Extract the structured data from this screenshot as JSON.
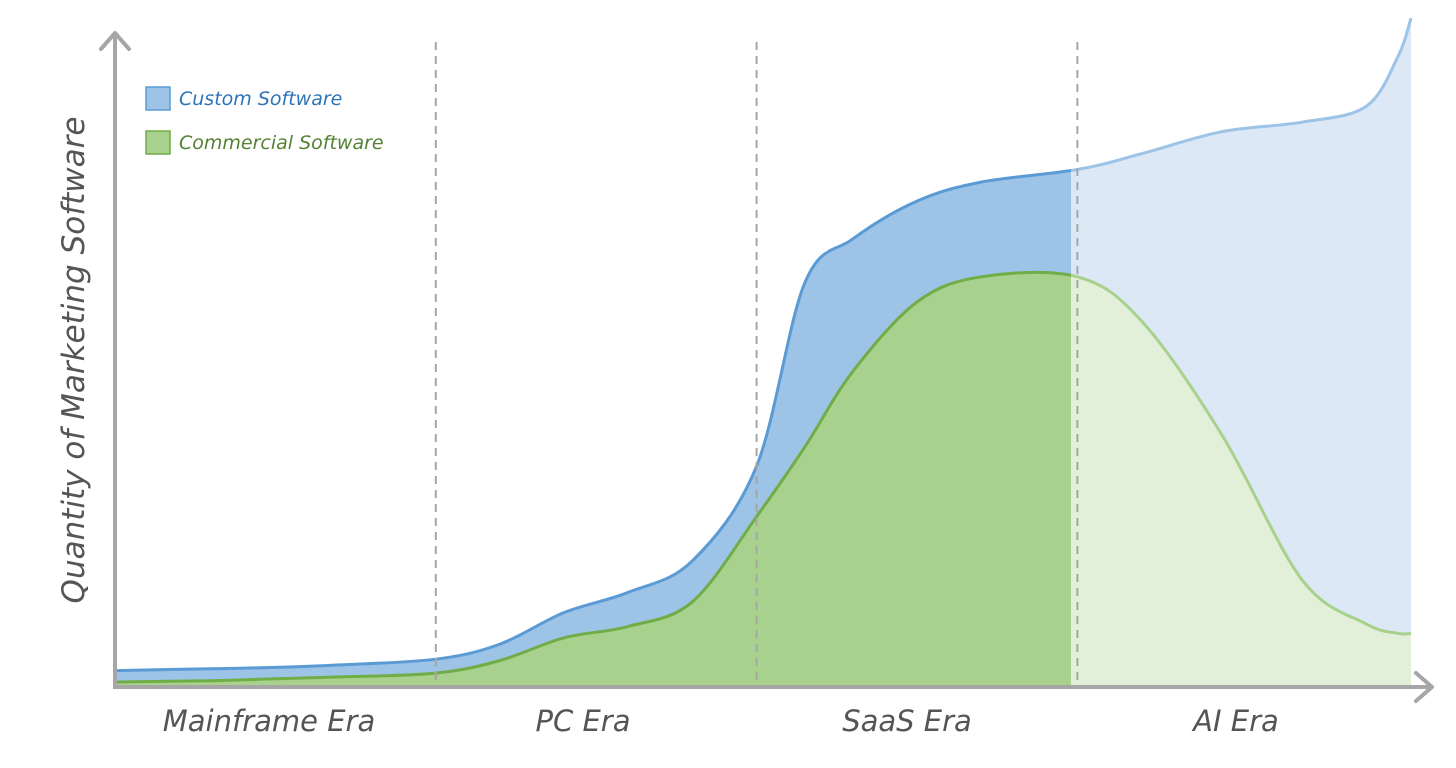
{
  "chart_data": {
    "type": "area",
    "title": "",
    "xlabel": "",
    "ylabel": "Quantity of Marketing Software",
    "grid": false,
    "legend_position": "top-left",
    "legend": [
      {
        "label": "Custom Software",
        "color": "#5b9bd5",
        "text_color": "#2e75b6"
      },
      {
        "label": "Commercial Software",
        "color": "#70ad47",
        "text_color": "#548235"
      }
    ],
    "eras": [
      "Mainframe Era",
      "PC Era",
      "SaaS Era",
      "AI Era"
    ],
    "series": [
      {
        "name": "Custom Software",
        "fill": "#9dc3e6",
        "stroke": "#5b9bd5",
        "faded_fill": "#dce8f5",
        "faded_stroke": "#9dc3e6",
        "x": [
          0,
          0.3,
          0.5,
          0.7,
          1.0,
          1.2,
          1.4,
          1.6,
          1.8,
          2.0,
          2.15,
          2.3,
          2.5,
          2.7,
          3.0,
          3.2,
          3.45,
          3.7,
          3.9,
          4.0,
          4.04
        ],
        "values": [
          2.6,
          2.9,
          3.1,
          3.5,
          4.4,
          6.8,
          11.8,
          15.0,
          20.0,
          35.0,
          64.0,
          71.0,
          77.0,
          80.0,
          82.0,
          84.5,
          88.0,
          89.5,
          92.0,
          100.0,
          106.0
        ]
      },
      {
        "name": "Commercial Software",
        "fill": "#a9d18e",
        "stroke": "#70ad47",
        "faded_fill": "#e2f0d9",
        "faded_stroke": "#a9d18e",
        "x": [
          0,
          0.3,
          0.5,
          0.7,
          1.0,
          1.2,
          1.4,
          1.6,
          1.8,
          2.0,
          2.15,
          2.3,
          2.5,
          2.7,
          3.0,
          3.2,
          3.45,
          3.7,
          3.9,
          4.0,
          4.04
        ],
        "values": [
          0.8,
          1.0,
          1.3,
          1.6,
          2.2,
          4.2,
          7.8,
          9.6,
          13.5,
          27.0,
          38.0,
          50.0,
          61.0,
          65.0,
          65.0,
          58.0,
          40.0,
          17.0,
          10.0,
          8.5,
          8.5
        ]
      }
    ],
    "era_boundaries": [
      1,
      2,
      3
    ],
    "faded_from_x": 3,
    "xlim": [
      0,
      4.04
    ],
    "ylim": [
      0,
      103
    ]
  }
}
